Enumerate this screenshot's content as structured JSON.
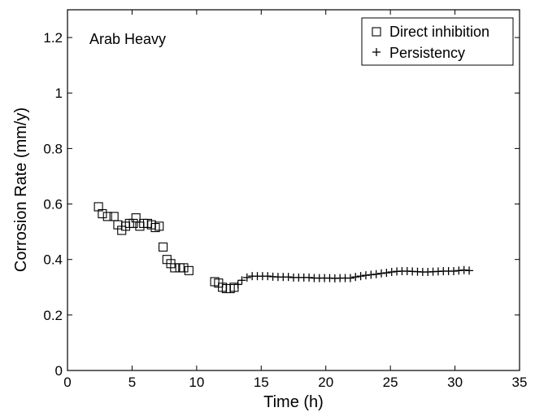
{
  "chart_data": {
    "type": "scatter",
    "annotation": "Arab Heavy",
    "xlabel": "Time (h)",
    "ylabel": "Corrosion Rate (mm/y)",
    "xlim": [
      0,
      35
    ],
    "ylim": [
      0,
      1.3
    ],
    "xticks": [
      0,
      5,
      10,
      15,
      20,
      25,
      30,
      35
    ],
    "yticks": [
      0,
      0.2,
      0.4,
      0.6,
      0.8,
      1,
      1.2
    ],
    "xtick_labels": [
      "0",
      "5",
      "10",
      "15",
      "20",
      "25",
      "30",
      "35"
    ],
    "ytick_labels": [
      "0",
      "0.2",
      "0.4",
      "0.6",
      "0.8",
      "1",
      "1.2"
    ],
    "grid": false,
    "legend_position": "top-right",
    "series": [
      {
        "name": "Direct inhibition",
        "marker": "square",
        "x": [
          2.4,
          2.7,
          3.1,
          3.6,
          3.9,
          4.2,
          4.5,
          4.8,
          5.1,
          5.3,
          5.6,
          5.9,
          6.2,
          6.5,
          6.8,
          7.1,
          7.4,
          7.7,
          8.0,
          8.3,
          8.7,
          9.0,
          9.4,
          11.4,
          11.7,
          12.0,
          12.3,
          12.6,
          12.9
        ],
        "y": [
          0.59,
          0.565,
          0.555,
          0.555,
          0.525,
          0.505,
          0.52,
          0.53,
          0.53,
          0.55,
          0.52,
          0.53,
          0.53,
          0.525,
          0.515,
          0.52,
          0.445,
          0.4,
          0.385,
          0.37,
          0.37,
          0.37,
          0.36,
          0.32,
          0.315,
          0.3,
          0.295,
          0.295,
          0.3
        ]
      },
      {
        "name": "Persistency",
        "marker": "plus",
        "x": [
          13.2,
          13.5,
          13.9,
          14.3,
          14.7,
          15.1,
          15.5,
          15.9,
          16.3,
          16.7,
          17.1,
          17.5,
          17.9,
          18.3,
          18.7,
          19.1,
          19.5,
          19.9,
          20.3,
          20.7,
          21.1,
          21.5,
          21.9,
          22.3,
          22.7,
          23.1,
          23.5,
          23.9,
          24.3,
          24.7,
          25.1,
          25.5,
          25.9,
          26.3,
          26.7,
          27.1,
          27.5,
          27.9,
          28.3,
          28.7,
          29.1,
          29.5,
          29.9,
          30.3,
          30.7,
          31.1
        ],
        "y": [
          0.31,
          0.325,
          0.335,
          0.34,
          0.34,
          0.34,
          0.34,
          0.338,
          0.337,
          0.337,
          0.337,
          0.335,
          0.335,
          0.335,
          0.335,
          0.333,
          0.333,
          0.333,
          0.333,
          0.332,
          0.333,
          0.333,
          0.333,
          0.337,
          0.34,
          0.343,
          0.345,
          0.347,
          0.35,
          0.352,
          0.355,
          0.357,
          0.358,
          0.358,
          0.357,
          0.356,
          0.355,
          0.355,
          0.356,
          0.357,
          0.358,
          0.358,
          0.358,
          0.36,
          0.362,
          0.36
        ]
      }
    ]
  }
}
